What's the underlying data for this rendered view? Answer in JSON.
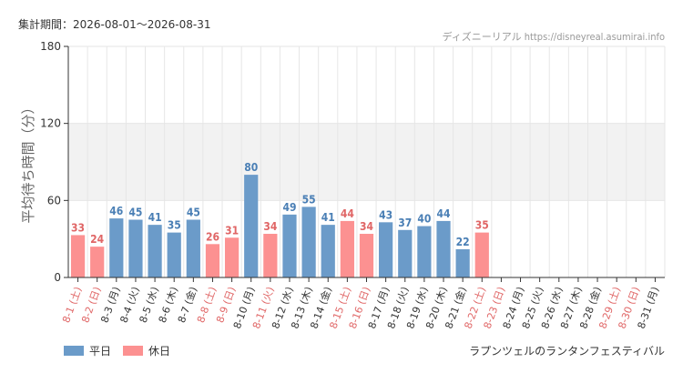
{
  "header": {
    "period": "集計期間：2026-08-01～2026-08-31",
    "source": "ディズニーリアル https://disneyreal.asumirai.info"
  },
  "footer": {
    "attraction": "ラプンツェルのランタンフェスティバル"
  },
  "colors": {
    "weekday": "#6b9bc9",
    "weekday_label": "#4a7fb5",
    "holiday": "#fc9191",
    "holiday_label": "#e06666",
    "band": "#f2f2f2",
    "grid": "#e6e6e6",
    "axis": "#333333"
  },
  "chart_data": {
    "type": "bar",
    "ylabel": "平均待ち時間（分）",
    "ylim": [
      0,
      180
    ],
    "yticks": [
      0,
      60,
      120,
      180
    ],
    "shaded_band": [
      60,
      120
    ],
    "categories": [
      "8-1 (土)",
      "8-2 (日)",
      "8-3 (月)",
      "8-4 (火)",
      "8-5 (水)",
      "8-6 (木)",
      "8-7 (金)",
      "8-8 (土)",
      "8-9 (日)",
      "8-10 (月)",
      "8-11 (火)",
      "8-12 (水)",
      "8-13 (木)",
      "8-14 (金)",
      "8-15 (土)",
      "8-16 (日)",
      "8-17 (月)",
      "8-18 (火)",
      "8-19 (水)",
      "8-20 (木)",
      "8-21 (金)",
      "8-22 (土)",
      "8-23 (日)",
      "8-24 (月)",
      "8-25 (火)",
      "8-26 (水)",
      "8-27 (木)",
      "8-28 (金)",
      "8-29 (土)",
      "8-30 (日)",
      "8-31 (月)"
    ],
    "day_type": [
      "holiday",
      "holiday",
      "weekday",
      "weekday",
      "weekday",
      "weekday",
      "weekday",
      "holiday",
      "holiday",
      "weekday",
      "holiday",
      "weekday",
      "weekday",
      "weekday",
      "holiday",
      "holiday",
      "weekday",
      "weekday",
      "weekday",
      "weekday",
      "weekday",
      "holiday",
      "holiday",
      "weekday",
      "weekday",
      "weekday",
      "weekday",
      "weekday",
      "holiday",
      "holiday",
      "weekday"
    ],
    "values": [
      33,
      24,
      46,
      45,
      41,
      35,
      45,
      26,
      31,
      80,
      34,
      49,
      55,
      41,
      44,
      34,
      43,
      37,
      40,
      44,
      22,
      35,
      null,
      null,
      null,
      null,
      null,
      null,
      null,
      null,
      null
    ],
    "legend": [
      {
        "key": "weekday",
        "label": "平日"
      },
      {
        "key": "holiday",
        "label": "休日"
      }
    ],
    "legend_position": "bottom-left",
    "grid": true
  }
}
